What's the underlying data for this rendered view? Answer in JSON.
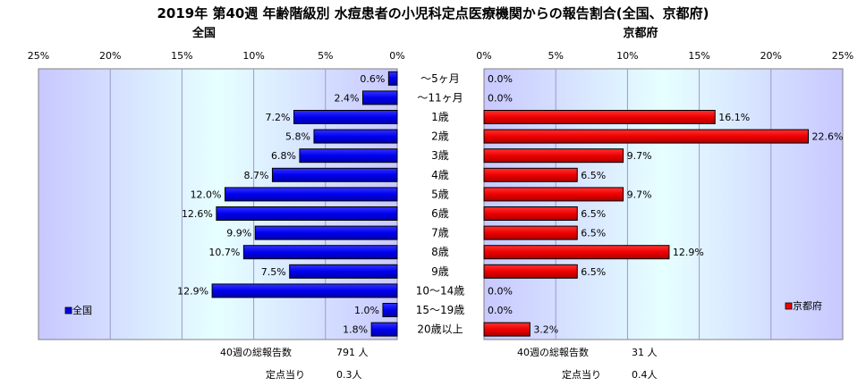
{
  "title": "2019年 第40週 年齢階級別 水痘患者の小児科定点医療機関からの報告割合(全国、京都府)",
  "colors": {
    "national_bar": "#0000ee",
    "kyoto_bar": "#ee0000",
    "bar_outline": "#000000",
    "plot_bg_edge": "#c8c8ff",
    "plot_bg_center": "#e6ffff"
  },
  "chart_data": [
    {
      "type": "bar",
      "orientation": "horizontal",
      "title": "全国",
      "direction": "right-to-left",
      "categories": [
        "～5ヶ月",
        "～11ヶ月",
        "1歳",
        "2歳",
        "3歳",
        "4歳",
        "5歳",
        "6歳",
        "7歳",
        "8歳",
        "9歳",
        "10～14歳",
        "15～19歳",
        "20歳以上"
      ],
      "series": [
        {
          "name": "全国",
          "values": [
            0.6,
            2.4,
            7.2,
            5.8,
            6.8,
            8.7,
            12.0,
            12.6,
            9.9,
            10.7,
            7.5,
            12.9,
            1.0,
            1.8
          ]
        }
      ],
      "labels": [
        "0.6%",
        "2.4%",
        "7.2%",
        "5.8%",
        "6.8%",
        "8.7%",
        "12.0%",
        "12.6%",
        "9.9%",
        "10.7%",
        "7.5%",
        "12.9%",
        "1.0%",
        "1.8%"
      ],
      "xlim": [
        0,
        25
      ],
      "ticks": [
        "25%",
        "20%",
        "15%",
        "10%",
        "5%",
        "0%"
      ],
      "grid": true,
      "legend": "left",
      "summary": {
        "total_label": "40週の総報告数",
        "total_value": "791 人",
        "per_site_label": "定点当り",
        "per_site_value": "0.3人"
      }
    },
    {
      "type": "bar",
      "orientation": "horizontal",
      "title": "京都府",
      "direction": "left-to-right",
      "categories": [
        "～5ヶ月",
        "～11ヶ月",
        "1歳",
        "2歳",
        "3歳",
        "4歳",
        "5歳",
        "6歳",
        "7歳",
        "8歳",
        "9歳",
        "10～14歳",
        "15～19歳",
        "20歳以上"
      ],
      "series": [
        {
          "name": "京都府",
          "values": [
            0.0,
            0.0,
            16.1,
            22.6,
            9.7,
            6.5,
            9.7,
            6.5,
            6.5,
            12.9,
            6.5,
            0.0,
            0.0,
            3.2
          ]
        }
      ],
      "labels": [
        "0.0%",
        "0.0%",
        "16.1%",
        "22.6%",
        "9.7%",
        "6.5%",
        "9.7%",
        "6.5%",
        "6.5%",
        "12.9%",
        "6.5%",
        "0.0%",
        "0.0%",
        "3.2%"
      ],
      "xlim": [
        0,
        25
      ],
      "ticks": [
        "0%",
        "5%",
        "10%",
        "15%",
        "20%",
        "25%"
      ],
      "grid": true,
      "legend": "right",
      "summary": {
        "total_label": "40週の総報告数",
        "total_value": "31 人",
        "per_site_label": "定点当り",
        "per_site_value": "0.4人"
      }
    }
  ]
}
